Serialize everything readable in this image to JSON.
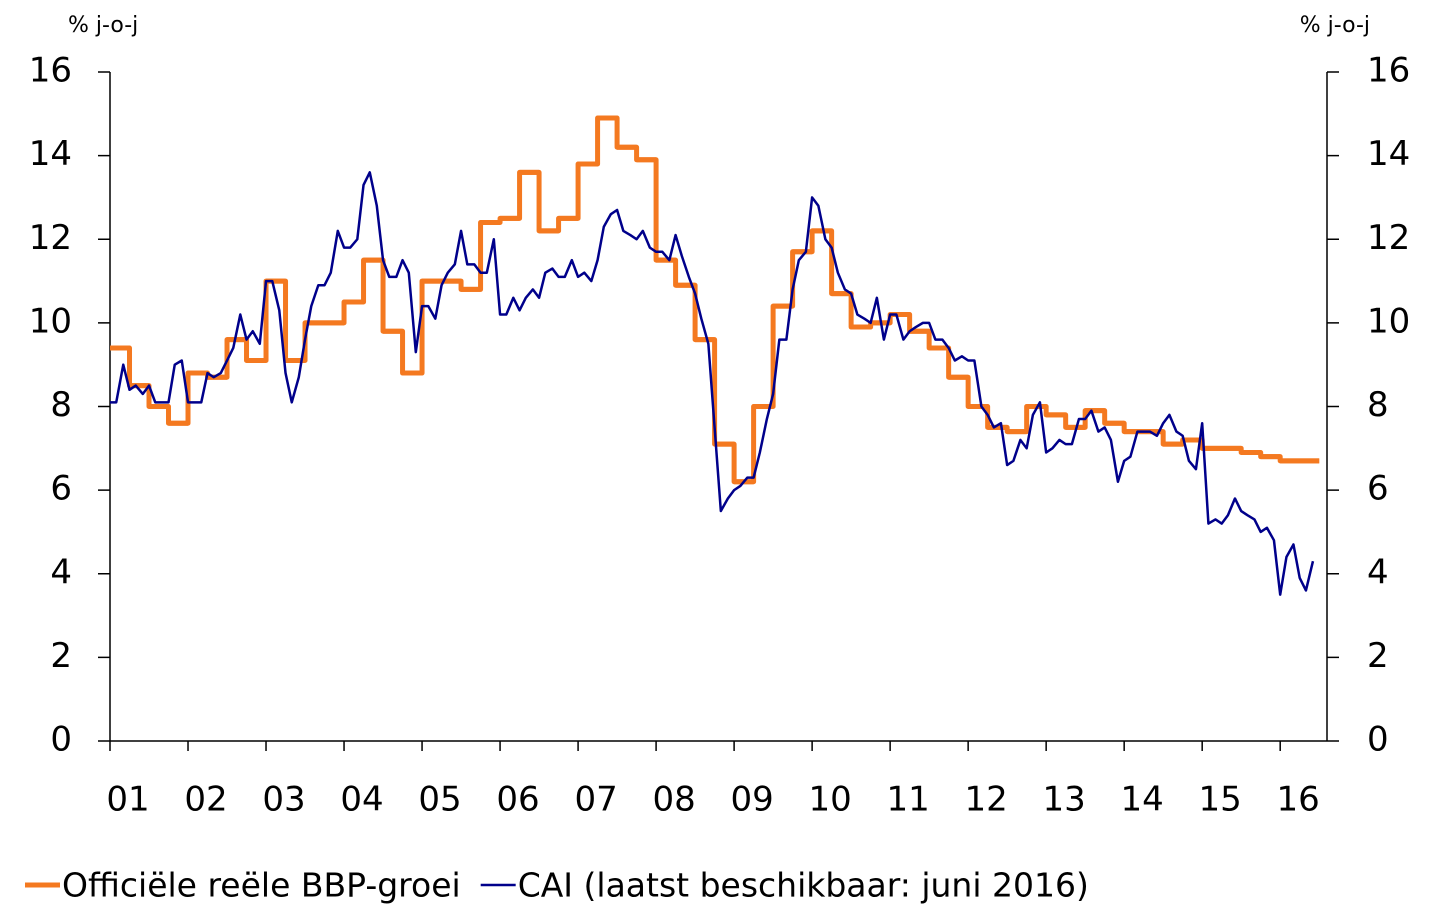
{
  "chart_data": {
    "type": "line",
    "ylabel": "% j-o-j",
    "y2label": "% j-o-j",
    "xlim": [
      2001,
      2016.6
    ],
    "xticks": [
      {
        "value": 2001,
        "label": "01"
      },
      {
        "value": 2002,
        "label": "02"
      },
      {
        "value": 2003,
        "label": "03"
      },
      {
        "value": 2004,
        "label": "04"
      },
      {
        "value": 2005,
        "label": "05"
      },
      {
        "value": 2006,
        "label": "06"
      },
      {
        "value": 2007,
        "label": "07"
      },
      {
        "value": 2008,
        "label": "08"
      },
      {
        "value": 2009,
        "label": "09"
      },
      {
        "value": 2010,
        "label": "10"
      },
      {
        "value": 2011,
        "label": "11"
      },
      {
        "value": 2012,
        "label": "12"
      },
      {
        "value": 2013,
        "label": "13"
      },
      {
        "value": 2014,
        "label": "14"
      },
      {
        "value": 2015,
        "label": "15"
      },
      {
        "value": 2016,
        "label": "16"
      }
    ],
    "ylim": [
      0,
      16
    ],
    "yticks": [
      0,
      2,
      4,
      6,
      8,
      10,
      12,
      14,
      16
    ],
    "y2lim": [
      0,
      16
    ],
    "y2ticks": [
      0,
      2,
      4,
      6,
      8,
      10,
      12,
      14,
      16
    ],
    "legend": "bottom",
    "series": [
      {
        "name": "Officiële reële BBP-groei",
        "color": "#f47920",
        "step": true,
        "x": [
          2001,
          2001.25,
          2001.5,
          2001.75,
          2002,
          2002.25,
          2002.5,
          2002.75,
          2003,
          2003.25,
          2003.5,
          2003.75,
          2004,
          2004.25,
          2004.5,
          2004.75,
          2005,
          2005.25,
          2005.5,
          2005.75,
          2006,
          2006.25,
          2006.5,
          2006.75,
          2007,
          2007.25,
          2007.5,
          2007.75,
          2008,
          2008.25,
          2008.5,
          2008.75,
          2009,
          2009.25,
          2009.5,
          2009.75,
          2010,
          2010.25,
          2010.5,
          2010.75,
          2011,
          2011.25,
          2011.5,
          2011.75,
          2012,
          2012.25,
          2012.5,
          2012.75,
          2013,
          2013.25,
          2013.5,
          2013.75,
          2014,
          2014.25,
          2014.5,
          2014.75,
          2015,
          2015.25,
          2015.5,
          2015.75,
          2016,
          2016.25
        ],
        "values": [
          9.4,
          8.5,
          8.0,
          7.6,
          8.8,
          8.7,
          9.6,
          9.1,
          11.0,
          9.1,
          10.0,
          10.0,
          10.5,
          11.5,
          9.8,
          8.8,
          11.0,
          11.0,
          10.8,
          12.4,
          12.5,
          13.6,
          12.2,
          12.5,
          13.8,
          14.9,
          14.2,
          13.9,
          11.5,
          10.9,
          9.6,
          7.1,
          6.2,
          8.0,
          10.4,
          11.7,
          12.2,
          10.7,
          9.9,
          10.0,
          10.2,
          9.8,
          9.4,
          8.7,
          8.0,
          7.5,
          7.4,
          8.0,
          7.8,
          7.5,
          7.9,
          7.6,
          7.4,
          7.4,
          7.1,
          7.2,
          7.0,
          7.0,
          6.9,
          6.8,
          6.7,
          6.7
        ]
      },
      {
        "name": "CAI (laatst beschikbaar: juni 2016)",
        "color": "#00008b",
        "x": [
          2001,
          2001.08,
          2001.17,
          2001.25,
          2001.33,
          2001.42,
          2001.5,
          2001.58,
          2001.67,
          2001.75,
          2001.83,
          2001.92,
          2002,
          2002.08,
          2002.17,
          2002.25,
          2002.33,
          2002.42,
          2002.5,
          2002.58,
          2002.67,
          2002.75,
          2002.83,
          2002.92,
          2003,
          2003.08,
          2003.17,
          2003.25,
          2003.33,
          2003.42,
          2003.5,
          2003.58,
          2003.67,
          2003.75,
          2003.83,
          2003.92,
          2004,
          2004.08,
          2004.17,
          2004.25,
          2004.33,
          2004.42,
          2004.5,
          2004.58,
          2004.67,
          2004.75,
          2004.83,
          2004.92,
          2005,
          2005.08,
          2005.17,
          2005.25,
          2005.33,
          2005.42,
          2005.5,
          2005.58,
          2005.67,
          2005.75,
          2005.83,
          2005.92,
          2006,
          2006.08,
          2006.17,
          2006.25,
          2006.33,
          2006.42,
          2006.5,
          2006.58,
          2006.67,
          2006.75,
          2006.83,
          2006.92,
          2007,
          2007.08,
          2007.17,
          2007.25,
          2007.33,
          2007.42,
          2007.5,
          2007.58,
          2007.67,
          2007.75,
          2007.83,
          2007.92,
          2008,
          2008.08,
          2008.17,
          2008.25,
          2008.33,
          2008.42,
          2008.5,
          2008.58,
          2008.67,
          2008.75,
          2008.83,
          2008.92,
          2009,
          2009.08,
          2009.17,
          2009.25,
          2009.33,
          2009.42,
          2009.5,
          2009.58,
          2009.67,
          2009.75,
          2009.83,
          2009.92,
          2010,
          2010.08,
          2010.17,
          2010.25,
          2010.33,
          2010.42,
          2010.5,
          2010.58,
          2010.67,
          2010.75,
          2010.83,
          2010.92,
          2011,
          2011.08,
          2011.17,
          2011.25,
          2011.33,
          2011.42,
          2011.5,
          2011.58,
          2011.67,
          2011.75,
          2011.83,
          2011.92,
          2012,
          2012.08,
          2012.17,
          2012.25,
          2012.33,
          2012.42,
          2012.5,
          2012.58,
          2012.67,
          2012.75,
          2012.83,
          2012.92,
          2013,
          2013.08,
          2013.17,
          2013.25,
          2013.33,
          2013.42,
          2013.5,
          2013.58,
          2013.67,
          2013.75,
          2013.83,
          2013.92,
          2014,
          2014.08,
          2014.17,
          2014.25,
          2014.33,
          2014.42,
          2014.5,
          2014.58,
          2014.67,
          2014.75,
          2014.83,
          2014.92,
          2015,
          2015.08,
          2015.17,
          2015.25,
          2015.33,
          2015.42,
          2015.5,
          2015.58,
          2015.67,
          2015.75,
          2015.83,
          2015.92,
          2016,
          2016.08,
          2016.17,
          2016.25,
          2016.33,
          2016.42
        ],
        "values": [
          8.1,
          8.1,
          9.0,
          8.4,
          8.5,
          8.3,
          8.5,
          8.1,
          8.1,
          8.1,
          9.0,
          9.1,
          8.1,
          8.1,
          8.1,
          8.8,
          8.7,
          8.8,
          9.1,
          9.4,
          10.2,
          9.6,
          9.8,
          9.5,
          11.0,
          11.0,
          10.3,
          8.8,
          8.1,
          8.7,
          9.6,
          10.4,
          10.9,
          10.9,
          11.2,
          12.2,
          11.8,
          11.8,
          12.0,
          13.3,
          13.6,
          12.8,
          11.5,
          11.1,
          11.1,
          11.5,
          11.2,
          9.3,
          10.4,
          10.4,
          10.1,
          10.9,
          11.2,
          11.4,
          12.2,
          11.4,
          11.4,
          11.2,
          11.2,
          12.0,
          10.2,
          10.2,
          10.6,
          10.3,
          10.6,
          10.8,
          10.6,
          11.2,
          11.3,
          11.1,
          11.1,
          11.5,
          11.1,
          11.2,
          11.0,
          11.5,
          12.3,
          12.6,
          12.7,
          12.2,
          12.1,
          12.0,
          12.2,
          11.8,
          11.7,
          11.7,
          11.5,
          12.1,
          11.6,
          11.1,
          10.7,
          10.1,
          9.5,
          7.5,
          5.5,
          5.8,
          6.0,
          6.1,
          6.3,
          6.3,
          6.9,
          7.7,
          8.3,
          9.6,
          9.6,
          10.8,
          11.5,
          11.7,
          13.0,
          12.8,
          12.0,
          11.8,
          11.2,
          10.8,
          10.7,
          10.2,
          10.1,
          10.0,
          10.6,
          9.6,
          10.2,
          10.2,
          9.6,
          9.8,
          9.9,
          10.0,
          10.0,
          9.6,
          9.6,
          9.4,
          9.1,
          9.2,
          9.1,
          9.1,
          8.0,
          7.8,
          7.5,
          7.6,
          6.6,
          6.7,
          7.2,
          7.0,
          7.8,
          8.1,
          6.9,
          7.0,
          7.2,
          7.1,
          7.1,
          7.7,
          7.7,
          7.9,
          7.4,
          7.5,
          7.2,
          6.2,
          6.7,
          6.8,
          7.4,
          7.4,
          7.4,
          7.3,
          7.6,
          7.8,
          7.4,
          7.3,
          6.7,
          6.5,
          7.6,
          5.2,
          5.3,
          5.2,
          5.4,
          5.8,
          5.5,
          5.4,
          5.3,
          5.0,
          5.1,
          4.8,
          3.5,
          4.4,
          4.7,
          3.9,
          3.6,
          4.3
        ]
      }
    ]
  }
}
